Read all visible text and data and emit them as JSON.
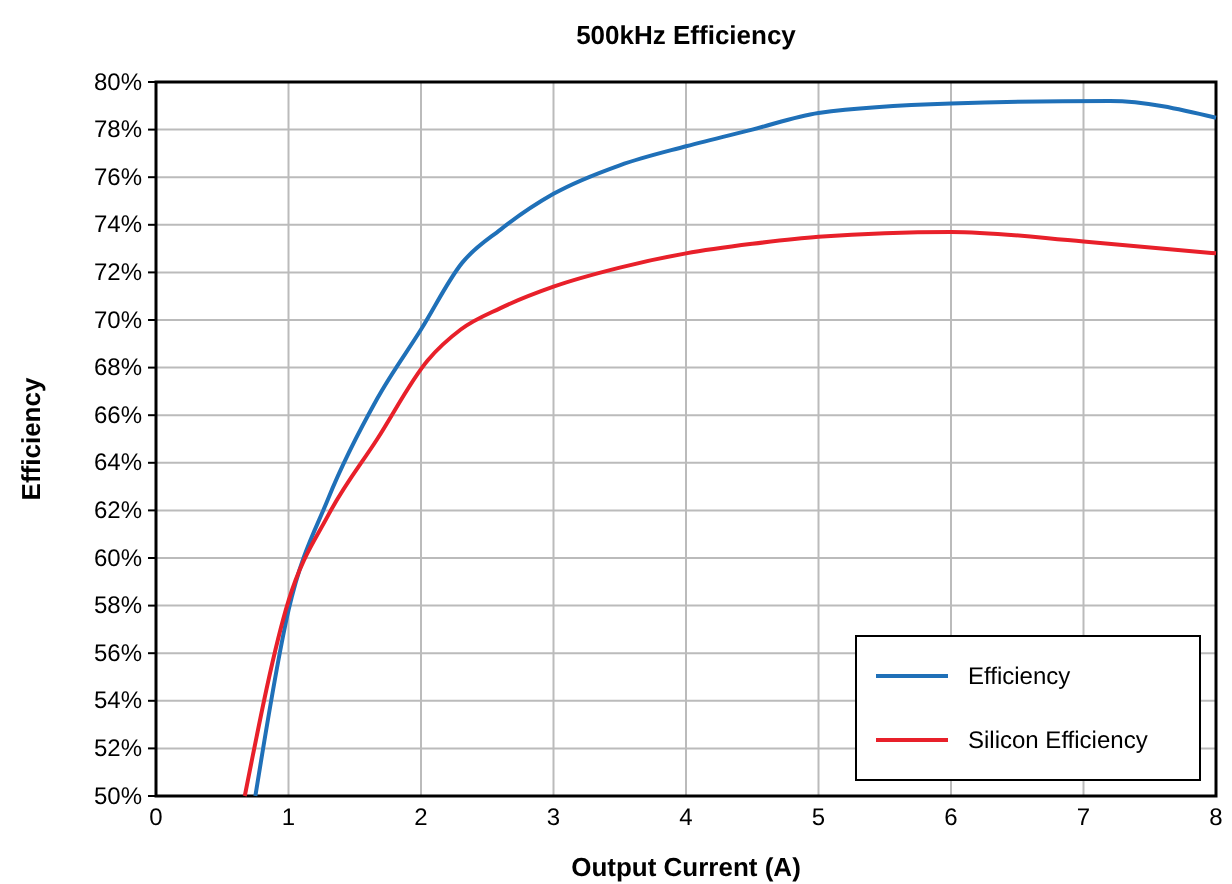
{
  "chart_data": {
    "type": "line",
    "title": "500kHz Efficiency",
    "xlabel": "Output Current (A)",
    "ylabel": "Efficiency",
    "xlim": [
      0,
      8
    ],
    "xticks": [
      0,
      1,
      2,
      3,
      4,
      5,
      6,
      7,
      8
    ],
    "ylim": [
      50,
      80
    ],
    "yticks": [
      {
        "value": 50,
        "label": "50%"
      },
      {
        "value": 52,
        "label": "52%"
      },
      {
        "value": 54,
        "label": "54%"
      },
      {
        "value": 56,
        "label": "56%"
      },
      {
        "value": 58,
        "label": "58%"
      },
      {
        "value": 60,
        "label": "60%"
      },
      {
        "value": 62,
        "label": "62%"
      },
      {
        "value": 64,
        "label": "64%"
      },
      {
        "value": 66,
        "label": "66%"
      },
      {
        "value": 68,
        "label": "68%"
      },
      {
        "value": 70,
        "label": "70%"
      },
      {
        "value": 72,
        "label": "72%"
      },
      {
        "value": 74,
        "label": "74%"
      },
      {
        "value": 76,
        "label": "76%"
      },
      {
        "value": 78,
        "label": "78%"
      },
      {
        "value": 80,
        "label": "80%"
      }
    ],
    "grid": true,
    "legend": "bottom right",
    "marker": "none",
    "line_style": "solid",
    "series": [
      {
        "name": "Efficiency",
        "color": "#1f70b8",
        "x": [
          0.75,
          1,
          1.3,
          1.67,
          2,
          2.31,
          2.6,
          3,
          3.5,
          4,
          4.5,
          5,
          6,
          7.2,
          8
        ],
        "values": [
          50,
          57.8,
          62.5,
          66.7,
          69.6,
          72.4,
          73.8,
          75.3,
          76.5,
          77.3,
          78,
          78.7,
          79.1,
          79.2,
          78.5
        ]
      },
      {
        "name": "Silicon Efficiency",
        "color": "#e8202a",
        "x": [
          0.67,
          1,
          1.3,
          1.67,
          2.05,
          2.3,
          2.6,
          3,
          3.5,
          4,
          4.5,
          5,
          6,
          7,
          8
        ],
        "values": [
          50,
          58.2,
          61.8,
          65,
          68.3,
          69.6,
          70.5,
          71.4,
          72.2,
          72.8,
          73.2,
          73.5,
          73.7,
          73.3,
          72.8
        ]
      }
    ]
  }
}
